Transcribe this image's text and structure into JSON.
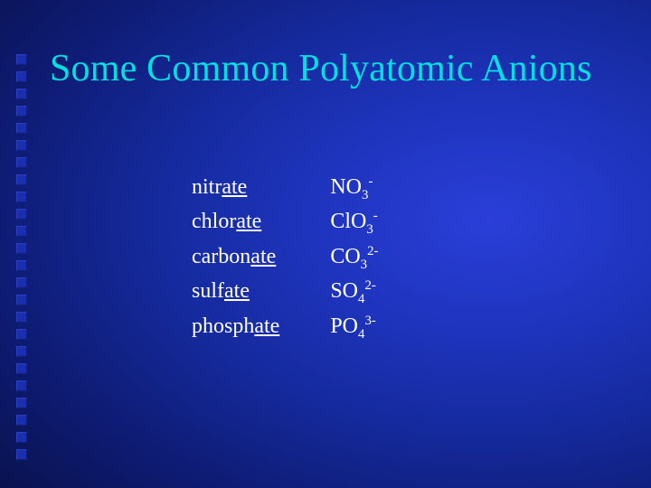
{
  "title": "Some Common Polyatomic Anions",
  "title_color": "#00e0e0",
  "text_color": "#ffffff",
  "background": {
    "gradient_stops": [
      "#2a3fd8",
      "#1f35c0",
      "#152a9e",
      "#0e1b72",
      "#081148",
      "#030823",
      "#000008"
    ],
    "bullet_color": "#1a2fb0"
  },
  "bullet_count": 24,
  "anions": [
    {
      "name_pre": "nitr",
      "name_u": "ate",
      "base": "NO",
      "sub": "3",
      "sup": "-"
    },
    {
      "name_pre": "chlor",
      "name_u": "ate",
      "base": "ClO",
      "sub": "3",
      "sup": "-"
    },
    {
      "name_pre": "carbon",
      "name_u": "ate",
      "base": "CO",
      "sub": "3",
      "sup": "2-"
    },
    {
      "name_pre": "sulf",
      "name_u": "ate",
      "base": "SO",
      "sub": "4",
      "sup": "2-"
    },
    {
      "name_pre": "phosph",
      "name_u": "ate",
      "base": "PO",
      "sub": "4",
      "sup": "3-"
    }
  ],
  "fontsize_title": 42,
  "fontsize_body": 24
}
